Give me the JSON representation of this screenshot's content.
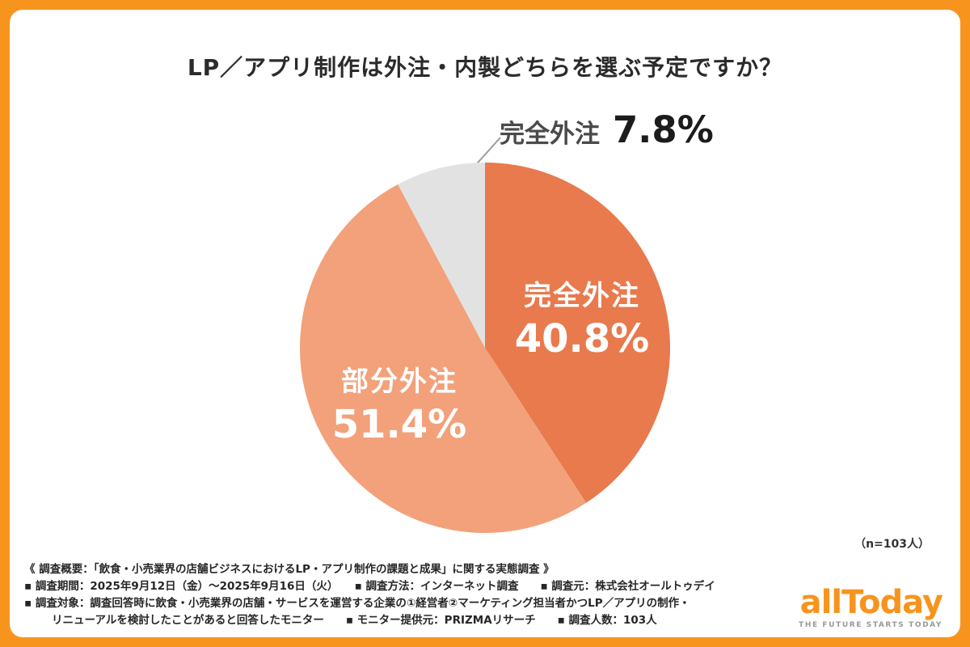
{
  "title": "LP／アプリ制作は外注・内製どちらを選ぶ予定ですか？",
  "colors": {
    "frame_orange": "#F7941E",
    "card_white": "#FFFFFF",
    "slice_full_outsource": "#E87A4E",
    "slice_partial_outsource": "#F2A17A",
    "slice_small_gray": "#E2E2E2",
    "logo_orange": "#F7941E"
  },
  "chart_data": {
    "type": "pie",
    "title": "LP／アプリ制作は外注・内製どちらを選ぶ予定ですか？",
    "n": 103,
    "start_angle_deg": -90,
    "direction": "clockwise",
    "legend_position": "labels-on-slices",
    "slices": [
      {
        "label": "完全外注",
        "value": 40.8,
        "color": "#E87A4E"
      },
      {
        "label": "部分外注",
        "value": 51.4,
        "color": "#F2A17A"
      },
      {
        "label": "完全外注",
        "value": 7.8,
        "color": "#E2E2E2"
      }
    ]
  },
  "labels": {
    "full_outsource": {
      "name": "完全外注",
      "pct": "40.8%"
    },
    "partial_outsource": {
      "name": "部分外注",
      "pct": "51.4%"
    },
    "callout": {
      "name": "完全外注",
      "pct": "7.8%"
    }
  },
  "sample_size_note": "（n=103人）",
  "footer": {
    "line1": "《 調査概要：「飲食・小売業界の店舗ビジネスにおけるLP・アプリ制作の課題と成果」に関する実態調査 》",
    "line2": "▪ 調査期間：2025年9月12日（金）〜2025年9月16日（火）　　▪ 調査方法：インターネット調査　　▪ 調査元：株式会社オールトゥデイ",
    "line3": "▪ 調査対象：調査回答時に飲食・小売業界の店舗・サービスを運営する企業の①経営者②マーケティング担当者かつLP／アプリの制作・",
    "line4": "リニューアルを検討したことがあると回答したモニター　　▪ モニター提供元：PRIZMAリサーチ　　▪ 調査人数：103人"
  },
  "logo": {
    "wordmark": "allToday",
    "tagline": "THE FUTURE STARTS TODAY"
  }
}
